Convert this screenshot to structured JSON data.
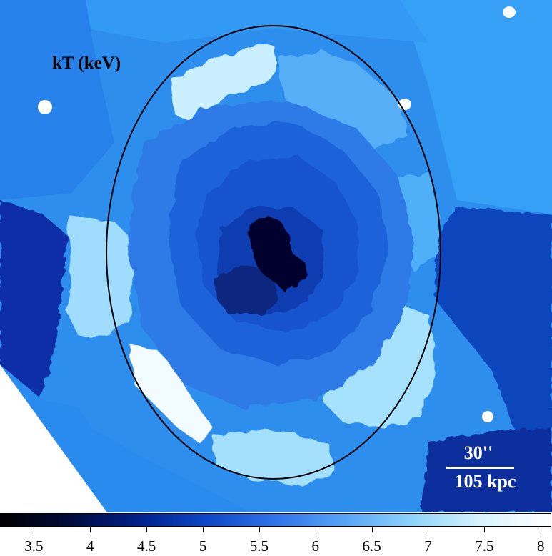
{
  "image": {
    "title": "kT (keV)",
    "scale_angle": "30''",
    "scale_distance": "105 kpc"
  },
  "colorbar": {
    "min": 3.2,
    "max": 8.1,
    "ticks": [
      "3.5",
      "4",
      "4.5",
      "5",
      "5.5",
      "6",
      "6.5",
      "7",
      "7.5",
      "8"
    ],
    "colors": [
      "#000000",
      "#000a3c",
      "#00218c",
      "#0d47c5",
      "#2f74e8",
      "#57a4f7",
      "#8fd4fb",
      "#d9f4fe",
      "#ffffff"
    ]
  }
}
